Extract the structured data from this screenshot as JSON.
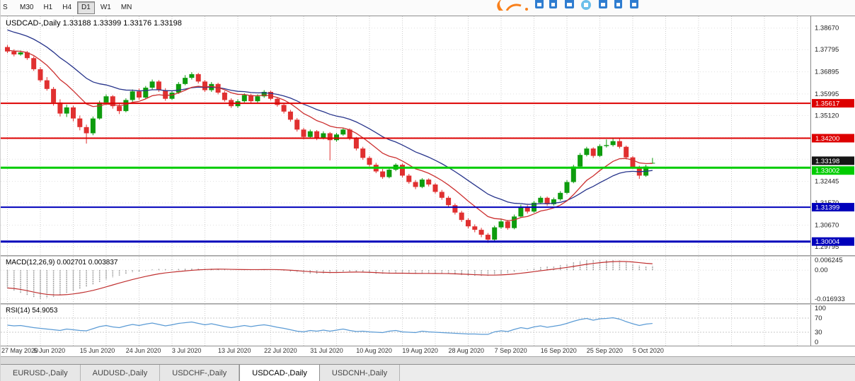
{
  "toolbar": {
    "partial_button": "S",
    "timeframes": [
      "M30",
      "H1",
      "H4",
      "D1",
      "W1",
      "MN"
    ],
    "active_timeframe": "D1"
  },
  "brand_mark": {
    "colors": {
      "orange": "#f9801b",
      "blue": "#2f7dd0",
      "light_blue": "#6cc0ea"
    }
  },
  "main_chart": {
    "title": "USDCAD-,Daily",
    "ohlc_text": {
      "open": "1.33188",
      "high": "1.33399",
      "low": "1.33176",
      "close": "1.33198"
    },
    "price_ticks": [
      "1.38670",
      "1.37795",
      "1.36895",
      "1.35995",
      "1.35120",
      "1.34220",
      "1.33345",
      "1.32445",
      "1.31570",
      "1.30670",
      "1.29795"
    ],
    "levels": [
      {
        "price": 1.35617,
        "label": "1.35617",
        "color": "#dd0000",
        "thickness": 2
      },
      {
        "price": 1.342,
        "label": "1.34200",
        "color": "#dd0000",
        "thickness": 2
      },
      {
        "price": 1.33002,
        "label": "1.33002",
        "color": "#00cc00",
        "thickness": 3
      },
      {
        "price": 1.31399,
        "label": "1.31399",
        "color": "#0000bb",
        "thickness": 2
      },
      {
        "price": 1.30004,
        "label": "1.30004",
        "color": "#0000bb",
        "thickness": 3
      }
    ],
    "current_price": {
      "value": 1.33198,
      "label": "1.33198",
      "color": "#151515"
    },
    "colors": {
      "bull": "#0e9c0e",
      "bear": "#e03030",
      "ma_fast": "#cc2f2f",
      "ma_slow": "#27348b"
    },
    "ma": {
      "fast_period": 10,
      "fast_seed": 1.3778,
      "slow_period": 21,
      "slow_seed": 1.3868
    },
    "scale": {
      "min": 1.2945,
      "max": 1.3915
    }
  },
  "chart_data": {
    "type": "candlestick",
    "symbol": "USDCAD",
    "timeframe": "Daily",
    "label_every": 7,
    "grid_every": 5,
    "x_labels": [
      "27 May 2020",
      "5 Jun 2020",
      "15 Jun 2020",
      "24 Jun 2020",
      "3 Jul 2020",
      "13 Jul 2020",
      "22 Jul 2020",
      "31 Jul 2020",
      "10 Aug 2020",
      "19 Aug 2020",
      "28 Aug 2020",
      "7 Sep 2020",
      "16 Sep 2020",
      "25 Sep 2020",
      "5 Oct 2020"
    ],
    "candles": [
      [
        1.379,
        1.3798,
        1.3765,
        1.3772
      ],
      [
        1.3772,
        1.3781,
        1.3752,
        1.376
      ],
      [
        1.376,
        1.3776,
        1.3755,
        1.3768
      ],
      [
        1.3768,
        1.3774,
        1.3738,
        1.3745
      ],
      [
        1.3745,
        1.3752,
        1.3693,
        1.37
      ],
      [
        1.37,
        1.3708,
        1.3648,
        1.3655
      ],
      [
        1.3655,
        1.3668,
        1.3613,
        1.362
      ],
      [
        1.362,
        1.3628,
        1.3552,
        1.3565
      ],
      [
        1.3565,
        1.3578,
        1.3508,
        1.352
      ],
      [
        1.352,
        1.3556,
        1.3506,
        1.3545
      ],
      [
        1.3545,
        1.3552,
        1.3488,
        1.35
      ],
      [
        1.35,
        1.3512,
        1.3452,
        1.3465
      ],
      [
        1.3465,
        1.3475,
        1.3398,
        1.344
      ],
      [
        1.344,
        1.3508,
        1.3432,
        1.35
      ],
      [
        1.35,
        1.3572,
        1.3495,
        1.3565
      ],
      [
        1.3565,
        1.3598,
        1.3555,
        1.359
      ],
      [
        1.359,
        1.3595,
        1.354,
        1.355
      ],
      [
        1.355,
        1.3562,
        1.3518,
        1.353
      ],
      [
        1.353,
        1.3582,
        1.3525,
        1.3575
      ],
      [
        1.3575,
        1.3618,
        1.3568,
        1.361
      ],
      [
        1.361,
        1.3622,
        1.3576,
        1.3585
      ],
      [
        1.3585,
        1.3632,
        1.3578,
        1.3625
      ],
      [
        1.3625,
        1.3658,
        1.3618,
        1.365
      ],
      [
        1.365,
        1.3656,
        1.3608,
        1.3615
      ],
      [
        1.3615,
        1.3623,
        1.3572,
        1.358
      ],
      [
        1.358,
        1.3612,
        1.3575,
        1.3605
      ],
      [
        1.3605,
        1.3648,
        1.36,
        1.364
      ],
      [
        1.364,
        1.3676,
        1.3635,
        1.3665
      ],
      [
        1.3665,
        1.3688,
        1.3658,
        1.368
      ],
      [
        1.368,
        1.3685,
        1.3642,
        1.365
      ],
      [
        1.365,
        1.3656,
        1.3608,
        1.3615
      ],
      [
        1.3615,
        1.3648,
        1.3608,
        1.364
      ],
      [
        1.364,
        1.3645,
        1.3598,
        1.3605
      ],
      [
        1.3605,
        1.3612,
        1.3568,
        1.3575
      ],
      [
        1.3575,
        1.3582,
        1.3543,
        1.355
      ],
      [
        1.355,
        1.3578,
        1.3543,
        1.357
      ],
      [
        1.357,
        1.3602,
        1.3565,
        1.3595
      ],
      [
        1.3595,
        1.36,
        1.3562,
        1.357
      ],
      [
        1.357,
        1.3598,
        1.3564,
        1.359
      ],
      [
        1.359,
        1.3615,
        1.3584,
        1.3608
      ],
      [
        1.3608,
        1.3613,
        1.3573,
        1.358
      ],
      [
        1.358,
        1.3586,
        1.3548,
        1.3555
      ],
      [
        1.3555,
        1.3562,
        1.352,
        1.3528
      ],
      [
        1.3528,
        1.3535,
        1.3487,
        1.3495
      ],
      [
        1.3495,
        1.3502,
        1.3447,
        1.3455
      ],
      [
        1.3455,
        1.3462,
        1.3416,
        1.3425
      ],
      [
        1.3425,
        1.3455,
        1.342,
        1.3448
      ],
      [
        1.3448,
        1.3453,
        1.3412,
        1.342
      ],
      [
        1.342,
        1.3448,
        1.3415,
        1.344
      ],
      [
        1.344,
        1.3445,
        1.333,
        1.3412
      ],
      [
        1.3412,
        1.3442,
        1.3406,
        1.3435
      ],
      [
        1.3435,
        1.3462,
        1.343,
        1.3455
      ],
      [
        1.3455,
        1.346,
        1.3412,
        1.3418
      ],
      [
        1.3418,
        1.3425,
        1.337,
        1.3378
      ],
      [
        1.3378,
        1.3385,
        1.3332,
        1.334
      ],
      [
        1.334,
        1.3348,
        1.3305,
        1.3312
      ],
      [
        1.3312,
        1.332,
        1.3278,
        1.3285
      ],
      [
        1.3285,
        1.3295,
        1.3255,
        1.3262
      ],
      [
        1.3262,
        1.3298,
        1.3257,
        1.3292
      ],
      [
        1.3292,
        1.3318,
        1.3286,
        1.3312
      ],
      [
        1.3312,
        1.3317,
        1.3261,
        1.3268
      ],
      [
        1.3268,
        1.3275,
        1.3235,
        1.3242
      ],
      [
        1.3242,
        1.325,
        1.3213,
        1.3222
      ],
      [
        1.3222,
        1.3258,
        1.3217,
        1.3252
      ],
      [
        1.3252,
        1.3257,
        1.3224,
        1.3232
      ],
      [
        1.3232,
        1.3238,
        1.3195,
        1.3202
      ],
      [
        1.3202,
        1.321,
        1.317,
        1.3178
      ],
      [
        1.3178,
        1.3185,
        1.314,
        1.3148
      ],
      [
        1.3148,
        1.3155,
        1.311,
        1.3118
      ],
      [
        1.3118,
        1.3125,
        1.308,
        1.3088
      ],
      [
        1.3088,
        1.3095,
        1.3054,
        1.3062
      ],
      [
        1.3062,
        1.307,
        1.3038,
        1.3048
      ],
      [
        1.3048,
        1.3056,
        1.3018,
        1.3028
      ],
      [
        1.3028,
        1.3035,
        1.2995,
        1.3008
      ],
      [
        1.3008,
        1.3065,
        1.3003,
        1.3058
      ],
      [
        1.3058,
        1.309,
        1.3052,
        1.3082
      ],
      [
        1.3082,
        1.3088,
        1.3048,
        1.3055
      ],
      [
        1.3055,
        1.311,
        1.305,
        1.3102
      ],
      [
        1.3102,
        1.315,
        1.3097,
        1.3142
      ],
      [
        1.3142,
        1.3148,
        1.3114,
        1.3122
      ],
      [
        1.3122,
        1.3165,
        1.3117,
        1.3158
      ],
      [
        1.3158,
        1.3185,
        1.3152,
        1.3178
      ],
      [
        1.3178,
        1.3183,
        1.3145,
        1.3152
      ],
      [
        1.3152,
        1.3179,
        1.3146,
        1.3172
      ],
      [
        1.3172,
        1.3205,
        1.3166,
        1.3198
      ],
      [
        1.3198,
        1.325,
        1.3193,
        1.3242
      ],
      [
        1.3242,
        1.3312,
        1.3237,
        1.3305
      ],
      [
        1.3305,
        1.336,
        1.33,
        1.3352
      ],
      [
        1.3352,
        1.3385,
        1.3346,
        1.3378
      ],
      [
        1.3378,
        1.3383,
        1.334,
        1.3348
      ],
      [
        1.3348,
        1.3395,
        1.3343,
        1.3388
      ],
      [
        1.3388,
        1.3415,
        1.3382,
        1.3392
      ],
      [
        1.3392,
        1.342,
        1.3386,
        1.3408
      ],
      [
        1.3408,
        1.3418,
        1.3378,
        1.3385
      ],
      [
        1.3385,
        1.339,
        1.3334,
        1.3342
      ],
      [
        1.3342,
        1.3348,
        1.3296,
        1.3302
      ],
      [
        1.3302,
        1.3308,
        1.3255,
        1.3268
      ],
      [
        1.3268,
        1.3312,
        1.3263,
        1.3305
      ],
      [
        1.33188,
        1.33399,
        1.33176,
        1.33198
      ]
    ],
    "indicators": {
      "macd": {
        "name": "MACD(12,26,9)",
        "current_main": "0.002701",
        "current_signal": "0.003837",
        "axis_ticks": [
          "0.006245",
          "0.00",
          "-0.016933"
        ],
        "scale": {
          "min": -0.0195,
          "max": 0.008
        },
        "signal_period": 9,
        "colors": {
          "histogram": "#a0a0a0",
          "signal": "#c03030"
        },
        "histogram": [
          -0.0105,
          -0.012,
          -0.0135,
          -0.015,
          -0.0162,
          -0.0169,
          -0.0165,
          -0.0158,
          -0.0148,
          -0.0136,
          -0.0124,
          -0.0112,
          -0.01,
          -0.0086,
          -0.007,
          -0.0055,
          -0.0042,
          -0.0032,
          -0.0023,
          -0.0014,
          -0.0008,
          -0.0002,
          0.0004,
          0.0007,
          0.0006,
          0.0005,
          0.0007,
          0.001,
          0.0013,
          0.0013,
          0.0011,
          0.0011,
          0.0009,
          0.0005,
          0.0001,
          0,
          0.0002,
          0.0002,
          0.0003,
          0.0005,
          0.0004,
          0.0001,
          -0.0003,
          -0.0008,
          -0.0014,
          -0.0019,
          -0.002,
          -0.0021,
          -0.0019,
          -0.0018,
          -0.0014,
          -0.0009,
          -0.0007,
          -0.0009,
          -0.0013,
          -0.0017,
          -0.0021,
          -0.0024,
          -0.0023,
          -0.0019,
          -0.0018,
          -0.002,
          -0.0022,
          -0.002,
          -0.0019,
          -0.002,
          -0.0021,
          -0.0023,
          -0.0026,
          -0.0029,
          -0.0032,
          -0.0033,
          -0.0034,
          -0.0034,
          -0.0029,
          -0.0022,
          -0.0018,
          -0.001,
          -0.0001,
          0.0004,
          0.0011,
          0.0018,
          0.0021,
          0.0025,
          0.003,
          0.0037,
          0.0046,
          0.0054,
          0.0059,
          0.006,
          0.0062,
          0.0062,
          0.0061,
          0.0057,
          0.0048,
          0.0038,
          0.0028,
          0.0025,
          0.0027
        ]
      },
      "rsi": {
        "name": "RSI(14)",
        "current": "54.9053",
        "axis_ticks": [
          "100",
          "70",
          "30",
          "0"
        ],
        "levels": [
          70,
          30
        ],
        "color": "#5b9bd5",
        "values": [
          50,
          48,
          49,
          46,
          43,
          41,
          39,
          37,
          35,
          39,
          37,
          35,
          34,
          40,
          46,
          49,
          45,
          43,
          48,
          52,
          49,
          53,
          56,
          52,
          48,
          51,
          55,
          57,
          59,
          55,
          51,
          54,
          50,
          46,
          43,
          46,
          49,
          46,
          49,
          51,
          48,
          44,
          41,
          37,
          33,
          31,
          35,
          33,
          36,
          33,
          36,
          39,
          35,
          32,
          33,
          31,
          30,
          29,
          33,
          35,
          31,
          30,
          29,
          33,
          31,
          30,
          29,
          28,
          27,
          26,
          25,
          25,
          24,
          24,
          31,
          34,
          32,
          38,
          43,
          40,
          45,
          48,
          44,
          47,
          50,
          55,
          61,
          66,
          69,
          64,
          68,
          69,
          71,
          67,
          60,
          54,
          49,
          53,
          54.9
        ]
      }
    }
  },
  "tabs": {
    "items": [
      "EURUSD-,Daily",
      "AUDUSD-,Daily",
      "USDCHF-,Daily",
      "USDCAD-,Daily",
      "USDCNH-,Daily"
    ],
    "active_index": 3
  }
}
